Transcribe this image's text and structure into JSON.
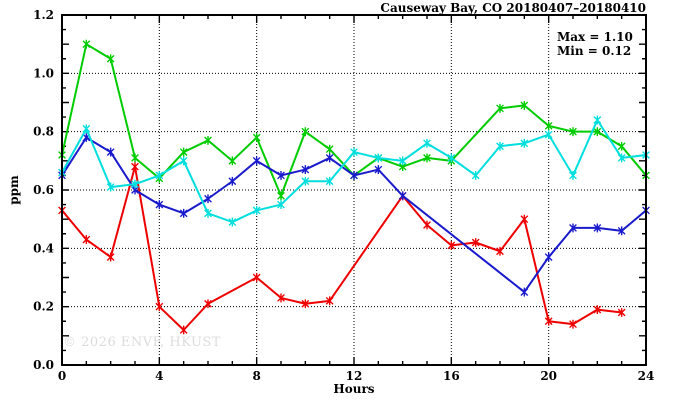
{
  "header": {
    "title": "Causeway Bay, CO 20180407–20180410"
  },
  "annotations": {
    "max_label": "Max = 1.10",
    "min_label": "Min = 0.12"
  },
  "watermark": "© 2026 ENVF, HKUST",
  "chart_data": {
    "type": "line",
    "title": "Causeway Bay, CO 20180407–20180410",
    "xlabel": "Hours",
    "ylabel": "ppm",
    "xlim": [
      0,
      24
    ],
    "ylim": [
      0,
      1.2
    ],
    "x_tick_labels": [
      "0",
      "4",
      "8",
      "12",
      "16",
      "20",
      "24"
    ],
    "x_tick_values": [
      0,
      4,
      8,
      12,
      16,
      20,
      24
    ],
    "y_tick_labels": [
      "0.0",
      "0.2",
      "0.4",
      "0.6",
      "0.8",
      "1.0",
      "1.2"
    ],
    "y_tick_values": [
      0,
      0.2,
      0.4,
      0.6,
      0.8,
      1.0,
      1.2
    ],
    "grid": "dotted black at labeled ticks, both axes",
    "legend": "none",
    "marker": "asterisk",
    "stat_max": 1.1,
    "stat_min": 0.12,
    "x": [
      0,
      1,
      2,
      3,
      4,
      5,
      6,
      7,
      8,
      9,
      10,
      11,
      12,
      13,
      14,
      15,
      16,
      17,
      18,
      19,
      20,
      21,
      22,
      23,
      24
    ],
    "series": [
      {
        "name": "series-red",
        "color": "#ee0000",
        "values": [
          0.53,
          0.43,
          0.37,
          0.68,
          0.2,
          0.12,
          0.21,
          null,
          0.3,
          0.23,
          0.21,
          0.22,
          null,
          null,
          0.58,
          0.48,
          0.41,
          0.42,
          0.39,
          0.5,
          0.15,
          0.14,
          0.19,
          0.18,
          null
        ]
      },
      {
        "name": "series-green",
        "color": "#00cc00",
        "values": [
          0.72,
          1.1,
          1.05,
          0.71,
          0.64,
          0.73,
          0.77,
          0.7,
          0.78,
          0.58,
          0.8,
          0.74,
          0.65,
          0.71,
          0.68,
          0.71,
          0.7,
          null,
          0.88,
          0.89,
          0.82,
          0.8,
          0.8,
          0.75,
          0.65
        ]
      },
      {
        "name": "series-blue",
        "color": "#1a1acd",
        "values": [
          0.65,
          0.78,
          0.73,
          0.6,
          0.55,
          0.52,
          0.57,
          0.63,
          0.7,
          0.65,
          0.67,
          0.71,
          0.65,
          0.67,
          0.58,
          null,
          null,
          null,
          null,
          0.25,
          0.37,
          0.47,
          0.47,
          0.46,
          0.53
        ]
      },
      {
        "name": "series-cyan",
        "color": "#00dede",
        "values": [
          0.66,
          0.81,
          0.61,
          0.62,
          0.65,
          0.7,
          0.52,
          0.49,
          0.53,
          0.55,
          0.63,
          0.63,
          0.73,
          0.71,
          0.7,
          0.76,
          0.71,
          0.65,
          0.75,
          0.76,
          0.79,
          0.65,
          0.84,
          0.71,
          0.72
        ]
      }
    ]
  }
}
